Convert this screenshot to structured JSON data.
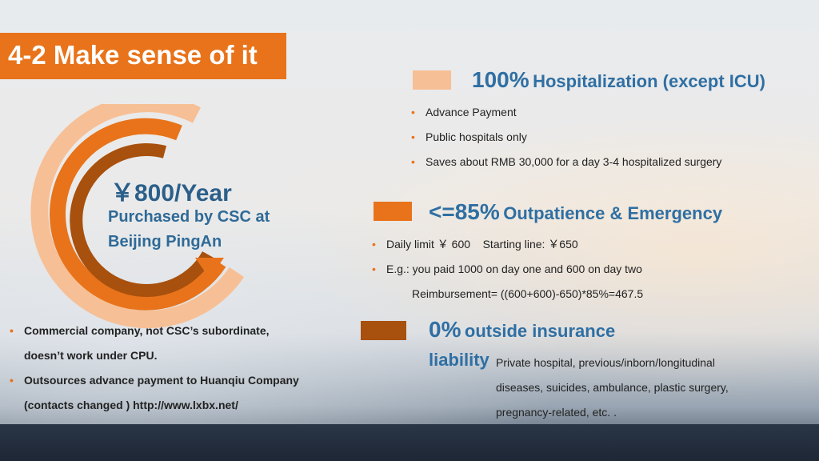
{
  "title": "4-2 Make sense of it",
  "left": {
    "price": "￥800/Year",
    "purchased_line1": "Purchased by CSC at",
    "purchased_line2": "Beijing PingAn",
    "bullets": [
      {
        "line1": "Commercial company, not CSC’s subordinate,",
        "line2": "doesn’t work under CPU."
      },
      {
        "line1": "Outsources advance payment to Huanqiu Company",
        "line2": "(contacts changed ) http://www.lxbx.net/"
      }
    ]
  },
  "sections": {
    "hospitalization": {
      "percent": "100%",
      "label": "Hospitalization (except ICU)",
      "swatch_color": "#f7bf95",
      "bullets": [
        "Advance Payment",
        "Public hospitals only",
        "Saves about RMB 30,000 for a day 3-4 hospitalized surgery"
      ]
    },
    "outpatient": {
      "percent": "<=85%",
      "label": "Outpatience & Emergency",
      "swatch_color": "#e8731a",
      "bullets": [
        "Daily limit ￥ 600    Starting line: ￥650",
        "E.g.:  you paid 1000 on day one and 600 on day two"
      ],
      "formula": "Reimbursement= ((600+600)-650)*85%=467.5"
    },
    "outside": {
      "percent": "0%",
      "label": "outside insurance",
      "label2": "liability",
      "swatch_color": "#a8500d",
      "lines": [
        "Private hospital, previous/inborn/longitudinal",
        "diseases, suicides, ambulance, plastic surgery,",
        "pregnancy-related, etc. ."
      ]
    }
  },
  "colors": {
    "accent": "#e8731a",
    "heading_blue": "#2f6fa3",
    "ring_light": "#f7bf95",
    "ring_dark": "#a8500d"
  }
}
